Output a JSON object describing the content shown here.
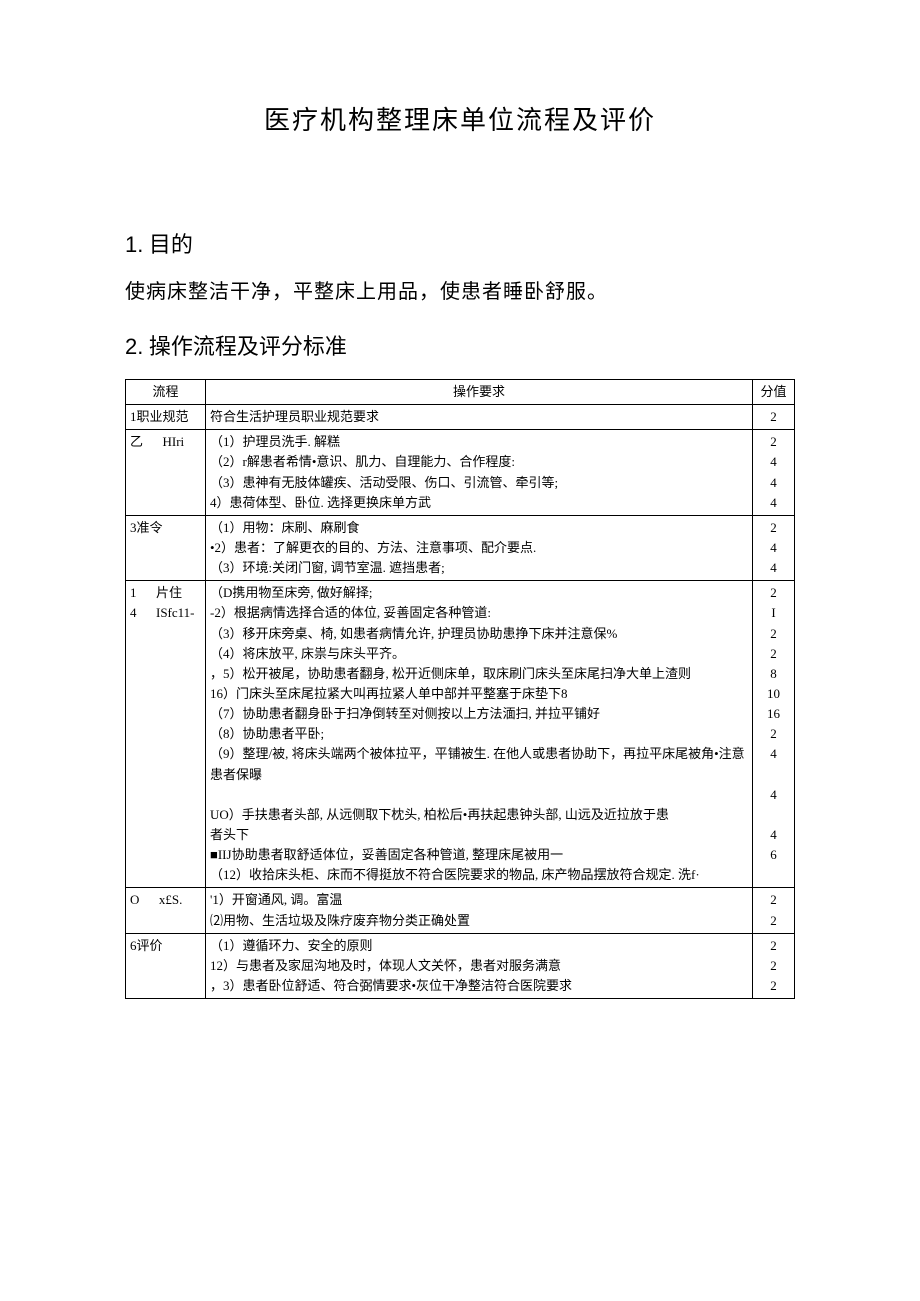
{
  "title": "医疗机构整理床单位流程及评价",
  "section1": {
    "heading_num": "1.",
    "heading_text": "目的",
    "body": "使病床整洁干净，平整床上用品，使患者睡卧舒服。"
  },
  "section2": {
    "heading_num": "2.",
    "heading_text": "操作流程及评分标准"
  },
  "table": {
    "headers": {
      "process": "流程",
      "requirement": "操作要求",
      "score": "分值"
    },
    "rows": [
      {
        "process": "1职业规范",
        "lines": [
          "符合生活护理员职业规范要求"
        ],
        "scores": [
          "2"
        ]
      },
      {
        "process": "乙      HIri",
        "lines": [
          "（1）护理员洗手. 解糕",
          "（2）r解患者希情•意识、肌力、自理能力、合作程度:",
          "（3）患神有无肢体罐疾、活动受限、伤口、引流管、牵引等;",
          "  4）患荷体型、卧位. 选择更换床单方武"
        ],
        "scores": [
          "2",
          "4",
          "4",
          "4"
        ]
      },
      {
        "process": "3准令",
        "lines": [
          "（1）用物：床刷、麻刷食",
          "•2）患者：了解更衣的目的、方法、注意事项、配介要点.",
          "（3）环境:关闭门窗, 调节室温. 遮挡患者;"
        ],
        "scores": [
          "2",
          "4",
          "4"
        ]
      },
      {
        "process": "1      片住\n4      ISfc11-",
        "lines": [
          "（D携用物至床旁, 做好解择;",
          "-2）根据病情选择合适的体位, 妥善固定各种管道:",
          "（3）移开床旁桌、椅, 如患者病情允许, 护理员协助患挣下床并注意保%",
          "（4）将床放平, 床祟与床头平齐。",
          "，5）松开被尾，协助患者翻身, 松开近侧床单，取床刷门床头至床尾扫净大单上渣则",
          "16）门床头至床尾拉紧大叫再拉紧人单中部并平整塞于床垫下8",
          "（7）协助患者翻身卧于扫净倒转至对侧按以上方法湎扫, 并拉平铺好",
          "（8）协助患者平卧;",
          "（9）整理/被, 将床头端两个被体拉平，平铺被生. 在他人或患者协助下，再拉平床尾被角•注意患者保曝",
          "",
          "UO）手扶患者头部, 从远侧取下枕头, 柏松后•再扶起患钟头部, 山远及近拉放于患",
          "   者头下",
          "■IIJ协助患者取舒适体位，妥善固定各种管道, 整理床尾被用一",
          "（12）收拾床头柜、床而不得挺放不符合医院要求的物品, 床产物品摆放符合规定. 洗f·"
        ],
        "scores": [
          "2",
          "I",
          "2",
          "2",
          "8",
          "10",
          "16",
          "2",
          "4",
          "",
          "4",
          "",
          "4",
          "6"
        ]
      },
      {
        "process": "O      x£S.",
        "lines": [
          "'1）开窗通风, 调。富温",
          "⑵用物、生活垃圾及陎疗废弃物分类正确处置"
        ],
        "scores": [
          "2",
          "2"
        ]
      },
      {
        "process": "6评价",
        "lines": [
          "（1）遵循环力、安全的原则",
          "12）与患者及家屈沟地及时，体现人文关怀，患者对服务满意",
          "，3）患者卧位舒适、符合弼情要求•灰位干净整洁符合医院要求"
        ],
        "scores": [
          "2",
          "2",
          "2"
        ]
      }
    ]
  }
}
